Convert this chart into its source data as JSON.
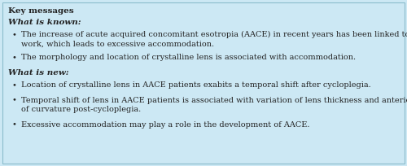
{
  "background_color": "#cce8f4",
  "border_color": "#8bbccc",
  "title": "Key messages",
  "title_fontsize": 7.5,
  "section_fontsize": 7.5,
  "bullet_fontsize": 7.0,
  "text_color": "#222222",
  "font_family": "DejaVu Serif",
  "section1_label": "What is known:",
  "section2_label": "What is new:",
  "bullets_known": [
    [
      "The increase of acute acquired concomitant esotropia (AACE) in recent years has been linked to excessive near",
      "work, which leads to excessive accommodation."
    ],
    [
      "The morphology and location of crystalline lens is associated with accommodation."
    ]
  ],
  "bullets_new": [
    [
      "Location of crystalline lens in AACE patients exabits a temporal shift after cycloplegia."
    ],
    [
      "Temporal shift of lens in AACE patients is associated with variation of lens thickness and anterior radius",
      "of curvature post-cycloplegia."
    ],
    [
      "Excessive accommodation may play a role in the development of AACE."
    ]
  ]
}
